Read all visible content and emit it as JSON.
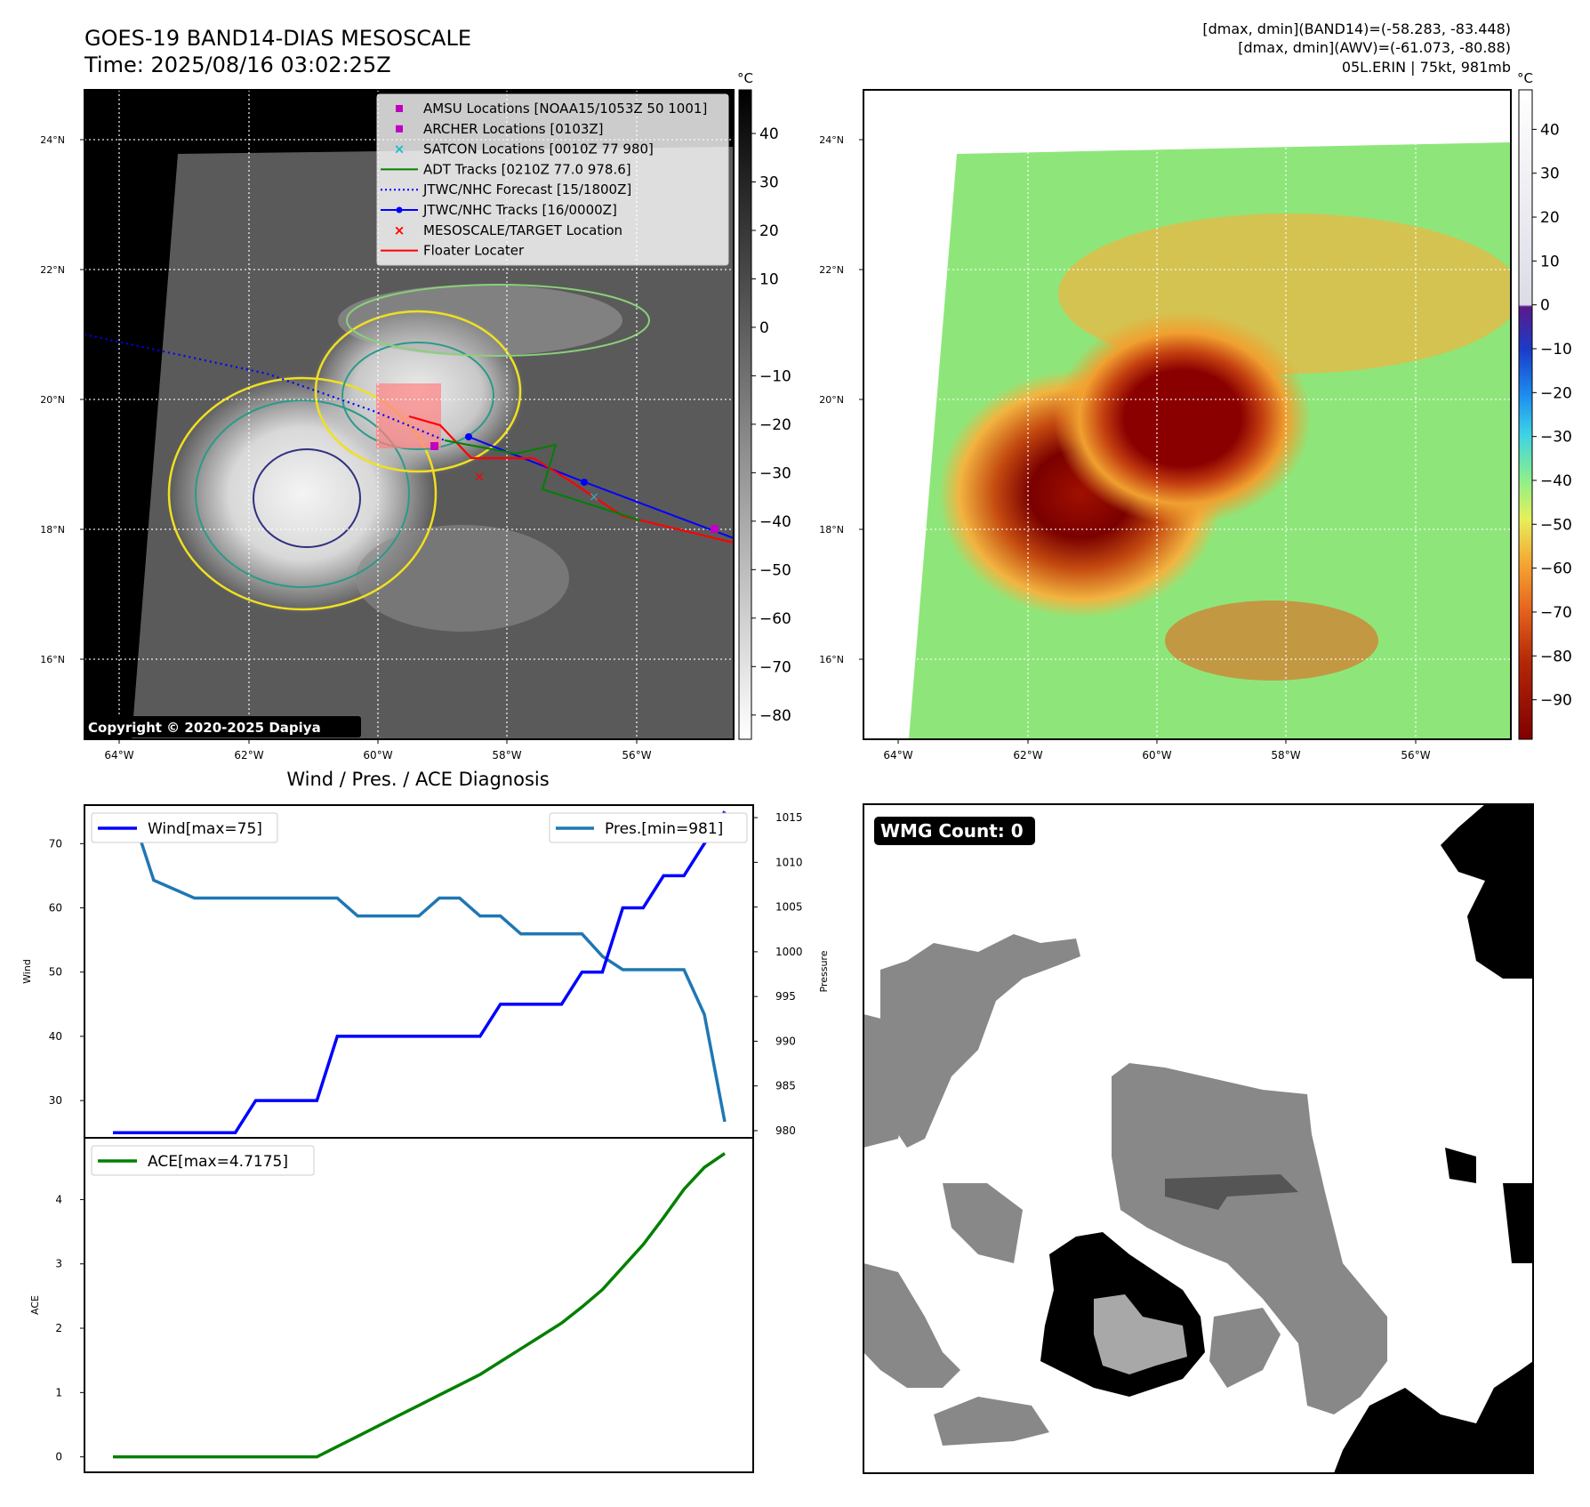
{
  "header": {
    "title_line1": "GOES-19 BAND14-DIAS MESOSCALE",
    "title_line2": "Time: 2025/08/16 03:02:25Z",
    "stats_line1": "[dmax, dmin](BAND14)=(-58.283, -83.448)",
    "stats_line2": "[dmax, dmin](AWV)=(-61.073, -80.88)",
    "stats_line3": "05L.ERIN | 75kt, 981mb"
  },
  "map": {
    "lat_ticks": [
      "24°N",
      "22°N",
      "20°N",
      "18°N",
      "16°N"
    ],
    "lon_ticks": [
      "64°W",
      "62°W",
      "60°W",
      "58°W",
      "56°W"
    ],
    "copyright": "Copyright © 2020-2025 Dapiya",
    "cbar_unit": "°C",
    "ir_cbar_ticks": [
      "40",
      "30",
      "20",
      "10",
      "0",
      "−10",
      "−20",
      "−30",
      "−40",
      "−50",
      "−60",
      "−70",
      "−80"
    ],
    "color_cbar_ticks": [
      "40",
      "30",
      "20",
      "10",
      "0",
      "−10",
      "−20",
      "−30",
      "−40",
      "−50",
      "−60",
      "−70",
      "−80",
      "−90"
    ],
    "legend": [
      {
        "label": "AMSU Locations [NOAA15/1053Z 50 1001]",
        "marker": "square",
        "color": "#c000c0"
      },
      {
        "label": "ARCHER Locations [0103Z]",
        "marker": "square",
        "color": "#c000c0"
      },
      {
        "label": "SATCON Locations [0010Z 77 980]",
        "marker": "x",
        "color": "#17becf"
      },
      {
        "label": "ADT Tracks [0210Z 77.0 978.6]",
        "marker": "line",
        "color": "#008000"
      },
      {
        "label": "JTWC/NHC Forecast [15/1800Z]",
        "marker": "dotted",
        "color": "#0000ff"
      },
      {
        "label": "JTWC/NHC Tracks [16/0000Z]",
        "marker": "line-dot",
        "color": "#0000ff"
      },
      {
        "label": "MESOSCALE/TARGET Location",
        "marker": "x",
        "color": "#ff0000"
      },
      {
        "label": "Floater Locater",
        "marker": "line",
        "color": "#ff0000"
      }
    ]
  },
  "diag": {
    "title": "Wind / Pres. / ACE Diagnosis",
    "wind_legend": "Wind[max=75]",
    "pres_legend": "Pres.[min=981]",
    "ace_legend": "ACE[max=4.7175]",
    "wind_ylabel": "Wind",
    "pres_ylabel": "Pressure",
    "ace_ylabel": "ACE"
  },
  "wmg": {
    "label": "WMG Count: 0"
  },
  "colors": {
    "wind": "#0000ff",
    "pressure": "#1f77b4",
    "ace": "#008000"
  },
  "chart_data": [
    {
      "type": "line",
      "title": "Wind / Pres. / ACE Diagnosis",
      "x": [
        0,
        1,
        2,
        3,
        4,
        5,
        6,
        7,
        8,
        9,
        10,
        11,
        12,
        13,
        14,
        15,
        16,
        17,
        18,
        19,
        20,
        21,
        22,
        23,
        24,
        25,
        26,
        27,
        28,
        29,
        30
      ],
      "series": [
        {
          "name": "Wind[max=75]",
          "axis": "left",
          "ylim": [
            24.2,
            76.0
          ],
          "yticks": [
            30,
            40,
            50,
            60,
            70
          ],
          "values": [
            25,
            25,
            25,
            25,
            25,
            25,
            25,
            30,
            30,
            30,
            30,
            40,
            40,
            40,
            40,
            40,
            40,
            40,
            40,
            45,
            45,
            45,
            45,
            50,
            50,
            60,
            60,
            65,
            65,
            70,
            75
          ]
        },
        {
          "name": "Pres.[min=981]",
          "axis": "right",
          "ylim": [
            979.2,
            1016.4
          ],
          "yticks": [
            980,
            985,
            990,
            995,
            1000,
            1005,
            1010,
            1015
          ],
          "values": [
            1015,
            1015,
            1008,
            1007,
            1006,
            1006,
            1006,
            1006,
            1006,
            1006,
            1006,
            1006,
            1004,
            1004,
            1004,
            1004,
            1006,
            1006,
            1004,
            1004,
            1002,
            1002,
            1002,
            1002,
            999.5,
            998,
            998,
            998,
            998,
            993,
            981
          ]
        }
      ]
    },
    {
      "type": "line",
      "x": [
        0,
        1,
        2,
        3,
        4,
        5,
        6,
        7,
        8,
        9,
        10,
        11,
        12,
        13,
        14,
        15,
        16,
        17,
        18,
        19,
        20,
        21,
        22,
        23,
        24,
        25,
        26,
        27,
        28,
        29,
        30
      ],
      "ylim": [
        -0.24,
        4.96
      ],
      "yticks": [
        0,
        1,
        2,
        3,
        4
      ],
      "series": [
        {
          "name": "ACE[max=4.7175]",
          "values": [
            0,
            0,
            0,
            0,
            0,
            0,
            0,
            0,
            0,
            0,
            0,
            0.16,
            0.32,
            0.48,
            0.64,
            0.8,
            0.96,
            1.12,
            1.28,
            1.48,
            1.68,
            1.88,
            2.08,
            2.33,
            2.6,
            2.95,
            3.3,
            3.72,
            4.16,
            4.5,
            4.7175
          ]
        }
      ]
    }
  ]
}
